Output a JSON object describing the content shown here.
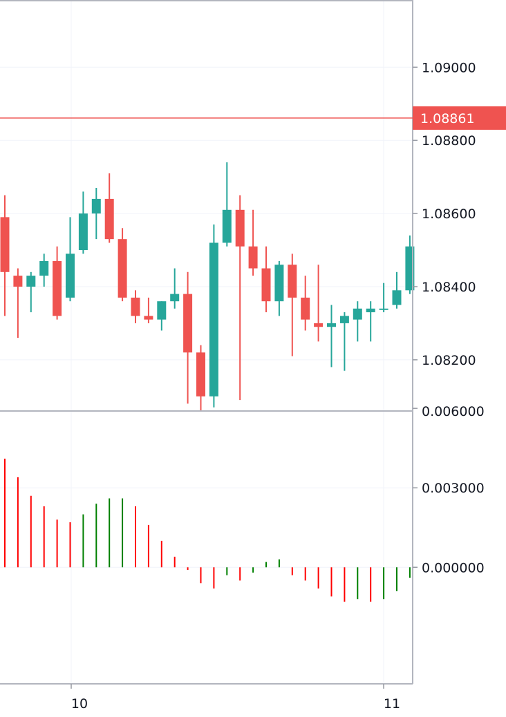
{
  "chart_data": [
    {
      "type": "candlestick",
      "colors": {
        "up": "#26a69a",
        "down": "#ef5350",
        "last_price_line": "#ef5350",
        "grid": "#f0f3fa"
      },
      "ylim": [
        1.0806,
        1.0918
      ],
      "y_ticks": [
        "1.09000",
        "1.08800",
        "1.08600",
        "1.08400",
        "1.08200"
      ],
      "last_price": "1.08861",
      "candles": [
        {
          "o": 1.0859,
          "h": 1.0865,
          "l": 1.0832,
          "c": 1.0844
        },
        {
          "o": 1.0843,
          "h": 1.0845,
          "l": 1.0826,
          "c": 1.084
        },
        {
          "o": 1.084,
          "h": 1.0844,
          "l": 1.0833,
          "c": 1.0843
        },
        {
          "o": 1.0843,
          "h": 1.0849,
          "l": 1.084,
          "c": 1.0847
        },
        {
          "o": 1.0847,
          "h": 1.0851,
          "l": 1.0831,
          "c": 1.0832
        },
        {
          "o": 1.0837,
          "h": 1.0859,
          "l": 1.0836,
          "c": 1.0849
        },
        {
          "o": 1.085,
          "h": 1.0866,
          "l": 1.0849,
          "c": 1.086
        },
        {
          "o": 1.086,
          "h": 1.0867,
          "l": 1.0853,
          "c": 1.0864
        },
        {
          "o": 1.0864,
          "h": 1.0871,
          "l": 1.0852,
          "c": 1.0853
        },
        {
          "o": 1.0853,
          "h": 1.0856,
          "l": 1.0836,
          "c": 1.0837
        },
        {
          "o": 1.0837,
          "h": 1.0839,
          "l": 1.083,
          "c": 1.0832
        },
        {
          "o": 1.0832,
          "h": 1.0837,
          "l": 1.083,
          "c": 1.0831
        },
        {
          "o": 1.0831,
          "h": 1.0836,
          "l": 1.0828,
          "c": 1.0836
        },
        {
          "o": 1.0836,
          "h": 1.0845,
          "l": 1.0834,
          "c": 1.0838
        },
        {
          "o": 1.0838,
          "h": 1.0844,
          "l": 1.0808,
          "c": 1.0822
        },
        {
          "o": 1.0822,
          "h": 1.0824,
          "l": 1.0806,
          "c": 1.081
        },
        {
          "o": 1.081,
          "h": 1.0857,
          "l": 1.0807,
          "c": 1.0852
        },
        {
          "o": 1.0852,
          "h": 1.0874,
          "l": 1.0851,
          "c": 1.0861
        },
        {
          "o": 1.0861,
          "h": 1.0865,
          "l": 1.0809,
          "c": 1.0851
        },
        {
          "o": 1.0851,
          "h": 1.0861,
          "l": 1.0843,
          "c": 1.0845
        },
        {
          "o": 1.0845,
          "h": 1.0851,
          "l": 1.0833,
          "c": 1.0836
        },
        {
          "o": 1.0836,
          "h": 1.0847,
          "l": 1.0832,
          "c": 1.0846
        },
        {
          "o": 1.0846,
          "h": 1.0849,
          "l": 1.0821,
          "c": 1.0837
        },
        {
          "o": 1.0837,
          "h": 1.0843,
          "l": 1.0828,
          "c": 1.0831
        },
        {
          "o": 1.083,
          "h": 1.0846,
          "l": 1.0825,
          "c": 1.0829
        },
        {
          "o": 1.0829,
          "h": 1.0835,
          "l": 1.0818,
          "c": 1.083
        },
        {
          "o": 1.083,
          "h": 1.0833,
          "l": 1.0817,
          "c": 1.0832
        },
        {
          "o": 1.0831,
          "h": 1.0836,
          "l": 1.0825,
          "c": 1.0834
        },
        {
          "o": 1.0833,
          "h": 1.0836,
          "l": 1.0825,
          "c": 1.0834
        },
        {
          "o": 1.0834,
          "h": 1.0841,
          "l": 1.0833,
          "c": 1.0834
        },
        {
          "o": 1.0835,
          "h": 1.0844,
          "l": 1.0834,
          "c": 1.0839
        },
        {
          "o": 1.0839,
          "h": 1.0854,
          "l": 1.0838,
          "c": 1.0851
        }
      ]
    },
    {
      "type": "histogram",
      "colors": {
        "rising": "#008000",
        "falling": "#ff0000"
      },
      "ylim": [
        -0.0044,
        0.0059
      ],
      "y_ticks": [
        "0.006000",
        "0.003000",
        "0.000000"
      ],
      "values": [
        {
          "v": 0.0041,
          "c": "falling"
        },
        {
          "v": 0.0034,
          "c": "falling"
        },
        {
          "v": 0.0027,
          "c": "falling"
        },
        {
          "v": 0.0023,
          "c": "falling"
        },
        {
          "v": 0.0018,
          "c": "falling"
        },
        {
          "v": 0.0017,
          "c": "falling"
        },
        {
          "v": 0.002,
          "c": "rising"
        },
        {
          "v": 0.0024,
          "c": "rising"
        },
        {
          "v": 0.0026,
          "c": "rising"
        },
        {
          "v": 0.0026,
          "c": "rising"
        },
        {
          "v": 0.0023,
          "c": "falling"
        },
        {
          "v": 0.0016,
          "c": "falling"
        },
        {
          "v": 0.001,
          "c": "falling"
        },
        {
          "v": 0.0004,
          "c": "falling"
        },
        {
          "v": -0.0001,
          "c": "falling"
        },
        {
          "v": -0.0006,
          "c": "falling"
        },
        {
          "v": -0.0008,
          "c": "falling"
        },
        {
          "v": -0.0003,
          "c": "rising"
        },
        {
          "v": -0.0005,
          "c": "falling"
        },
        {
          "v": -0.0002,
          "c": "rising"
        },
        {
          "v": 0.0002,
          "c": "rising"
        },
        {
          "v": 0.0003,
          "c": "rising"
        },
        {
          "v": -0.0003,
          "c": "falling"
        },
        {
          "v": -0.0005,
          "c": "falling"
        },
        {
          "v": -0.0008,
          "c": "falling"
        },
        {
          "v": -0.0011,
          "c": "falling"
        },
        {
          "v": -0.0013,
          "c": "falling"
        },
        {
          "v": -0.0012,
          "c": "rising"
        },
        {
          "v": -0.0013,
          "c": "falling"
        },
        {
          "v": -0.0012,
          "c": "rising"
        },
        {
          "v": -0.0009,
          "c": "rising"
        },
        {
          "v": -0.0004,
          "c": "rising"
        }
      ]
    }
  ],
  "time_axis": {
    "labels": [
      {
        "text": "10",
        "index": 5
      },
      {
        "text": "11",
        "index": 29
      }
    ]
  }
}
